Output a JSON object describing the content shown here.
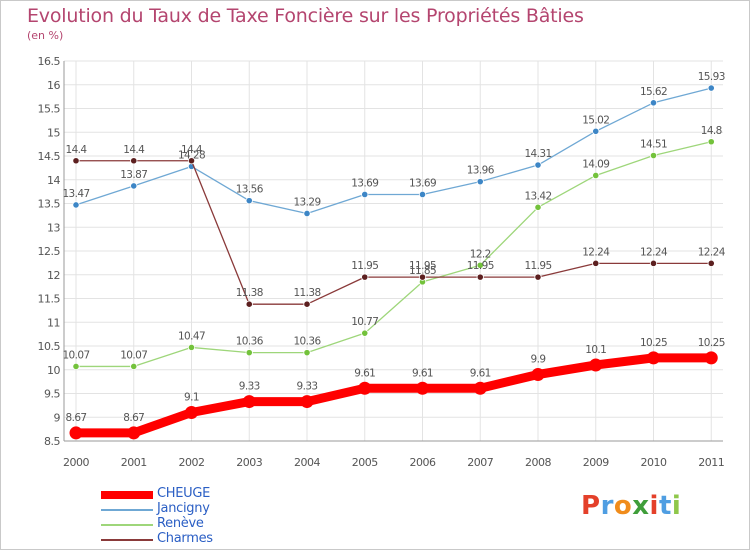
{
  "title": "Evolution du Taux de Taxe Foncière sur les Propriétés Bâties",
  "subtitle": "(en %)",
  "logo": {
    "text": "Proxiti",
    "letters": [
      "P",
      "r",
      "o",
      "x",
      "i",
      "t",
      "i"
    ],
    "colors": [
      "#e4402a",
      "#4f9ee2",
      "#f08c1c",
      "#3f9e3a",
      "#e4402a",
      "#4f9ee2",
      "#8fc74a"
    ]
  },
  "chart_data": {
    "type": "line",
    "x": [
      "2000",
      "2001",
      "2002",
      "2003",
      "2004",
      "2005",
      "2006",
      "2007",
      "2008",
      "2009",
      "2010",
      "2011"
    ],
    "ylim": [
      8.5,
      16.5
    ],
    "yticks": [
      "8.5",
      "9",
      "9.5",
      "10",
      "10.5",
      "11",
      "11.5",
      "12",
      "12.5",
      "13",
      "13.5",
      "14",
      "14.5",
      "15",
      "15.5",
      "16",
      "16.5"
    ],
    "grid": true,
    "legend": "bottom-left",
    "series": [
      {
        "name": "CHEUGE",
        "color": "#ff0000",
        "values": [
          8.67,
          8.67,
          9.1,
          9.33,
          9.33,
          9.61,
          9.61,
          9.61,
          9.9,
          10.1,
          10.25,
          10.25
        ],
        "labels": [
          "8.67",
          "8.67",
          "9.1",
          "9.33",
          "9.33",
          "9.61",
          "9.61",
          "9.61",
          "9.9",
          "10.1",
          "10.25",
          "10.25"
        ]
      },
      {
        "name": "Jancigny",
        "color": "#6fa8d4",
        "marker": "#3d86c6",
        "values": [
          13.47,
          13.87,
          14.28,
          13.56,
          13.29,
          13.69,
          13.69,
          13.96,
          14.31,
          15.02,
          15.62,
          15.93
        ],
        "labels": [
          "13.47",
          "13.87",
          "14.28",
          "13.56",
          "13.29",
          "13.69",
          "13.69",
          "13.96",
          "14.31",
          "15.02",
          "15.62",
          "15.93"
        ]
      },
      {
        "name": "Renève",
        "color": "#9ed67a",
        "marker": "#73c23b",
        "values": [
          10.07,
          10.07,
          10.47,
          10.36,
          10.36,
          10.77,
          11.85,
          12.2,
          13.42,
          14.09,
          14.51,
          14.8
        ],
        "labels": [
          "10.07",
          "10.07",
          "10.47",
          "10.36",
          "10.36",
          "10.77",
          "11.85",
          "12.2",
          "13.42",
          "14.09",
          "14.51",
          "14.8"
        ]
      },
      {
        "name": "Charmes",
        "color": "#8a3a3a",
        "marker": "#5c1f1f",
        "values": [
          14.4,
          14.4,
          14.4,
          11.38,
          11.38,
          11.95,
          11.95,
          11.95,
          11.95,
          12.24,
          12.24,
          12.24
        ],
        "labels": [
          "14.4",
          "14.4",
          "14.4",
          "11.38",
          "11.38",
          "11.95",
          "11.95",
          "11.95",
          "11.95",
          "12.24",
          "12.24",
          "12.24"
        ]
      }
    ]
  }
}
